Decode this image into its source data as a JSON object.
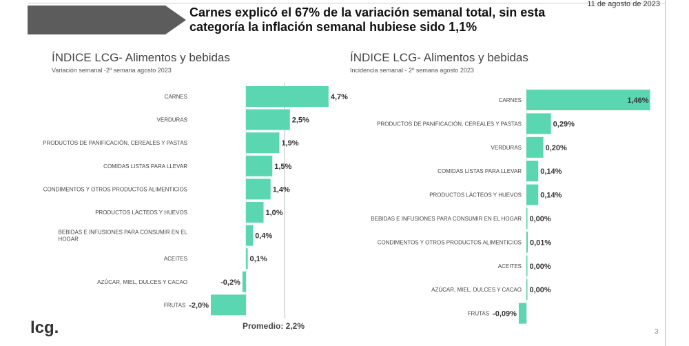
{
  "header": {
    "date": "11 de agosto de 2023",
    "headline": "Carnes explicó el 67% de la variación semanal total, sin esta categoría la inflación semanal hubiese sido 1,1%"
  },
  "footer": {
    "logo": "lcg.",
    "page": "3"
  },
  "chart_data": [
    {
      "type": "bar",
      "orientation": "horizontal",
      "title": "ÍNDICE LCG- Alimentos y bebidas",
      "subtitle": "Variación semanal -2º semana agosto 2023",
      "categories": [
        "CARNES",
        "VERDURAS",
        "PRODUCTOS DE PANIFICACIÓN, CEREALES Y PASTAS",
        "COMIDAS LISTAS PARA LLEVAR",
        "CONDIMENTOS Y OTROS PRODUCTOS ALIMENTICIOS",
        "PRODUCTOS LÁCTEOS Y HUEVOS",
        "BEBIDAS E INFUSIONES PARA CONSUMIR EN EL HOGAR",
        "ACEITES",
        "AZÚCAR, MIEL, DULCES Y CACAO",
        "FRUTAS"
      ],
      "values": [
        4.7,
        2.5,
        1.9,
        1.5,
        1.4,
        1.0,
        0.4,
        0.1,
        -0.2,
        -2.0
      ],
      "labels": [
        "4,7%",
        "2,5%",
        "1,9%",
        "1,5%",
        "1,4%",
        "1,0%",
        "0,4%",
        "0,1%",
        "-0,2%",
        "-2,0%"
      ],
      "reference_line": {
        "value": 2.2,
        "label": "Promedio: 2,2%"
      },
      "color": "#5ad6b0"
    },
    {
      "type": "bar",
      "orientation": "horizontal",
      "title": "ÍNDICE LCG- Alimentos y bebidas",
      "subtitle": "Incidencia semanal - 2º semana agosto 2023",
      "categories": [
        "CARNES",
        "PRODUCTOS DE PANIFICACIÓN, CEREALES Y PASTAS",
        "VERDURAS",
        "COMIDAS LISTAS PARA LLEVAR",
        "PRODUCTOS LÁCTEOS Y HUEVOS",
        "BEBIDAS E INFUSIONES PARA CONSUMIR EN EL HOGAR",
        "CONDIMENTOS Y OTROS PRODUCTOS ALIMENTICIOS",
        "ACEITES",
        "AZÚCAR, MIEL, DULCES Y CACAO",
        "FRUTAS"
      ],
      "values": [
        1.46,
        0.29,
        0.2,
        0.14,
        0.14,
        0.0,
        0.01,
        0.0,
        0.0,
        -0.09
      ],
      "labels": [
        "1,46%",
        "0,29%",
        "0,20%",
        "0,14%",
        "0,14%",
        "0,00%",
        "0,01%",
        "0,00%",
        "0,00%",
        "-0,09%"
      ],
      "color": "#5ad6b0"
    }
  ]
}
